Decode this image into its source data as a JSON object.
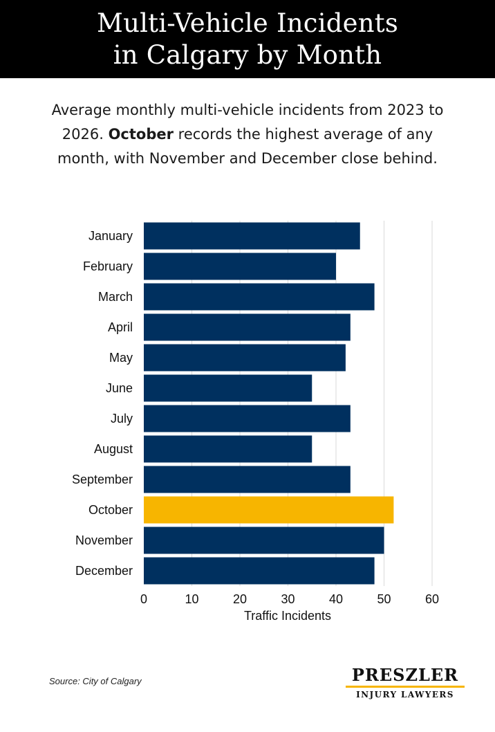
{
  "header": {
    "title_line1": "Multi-Vehicle Incidents",
    "title_line2": "in Calgary by Month"
  },
  "subtitle": {
    "part1": "Average monthly multi-vehicle incidents from 2023 to 2026. ",
    "bold": "October",
    "part2": " records the highest average of any month, with November and December close behind."
  },
  "chart_data": {
    "type": "bar",
    "orientation": "horizontal",
    "categories": [
      "January",
      "February",
      "March",
      "April",
      "May",
      "June",
      "July",
      "August",
      "September",
      "October",
      "November",
      "December"
    ],
    "values": [
      45,
      40,
      48,
      43,
      42,
      35,
      43,
      35,
      43,
      52,
      50,
      48
    ],
    "xlabel": "Traffic Incidents",
    "ylabel": "",
    "xlim": [
      0,
      60
    ],
    "xticks": [
      0,
      10,
      20,
      30,
      40,
      50,
      60
    ],
    "grid": true,
    "highlight_category": "October",
    "colors": {
      "bar": "#00305f",
      "highlight": "#f7b500",
      "grid": "#d9d9d9"
    }
  },
  "footer": {
    "source": "Source: City of Calgary",
    "logo_top": "PRESZLER",
    "logo_bottom": "INJURY LAWYERS"
  }
}
